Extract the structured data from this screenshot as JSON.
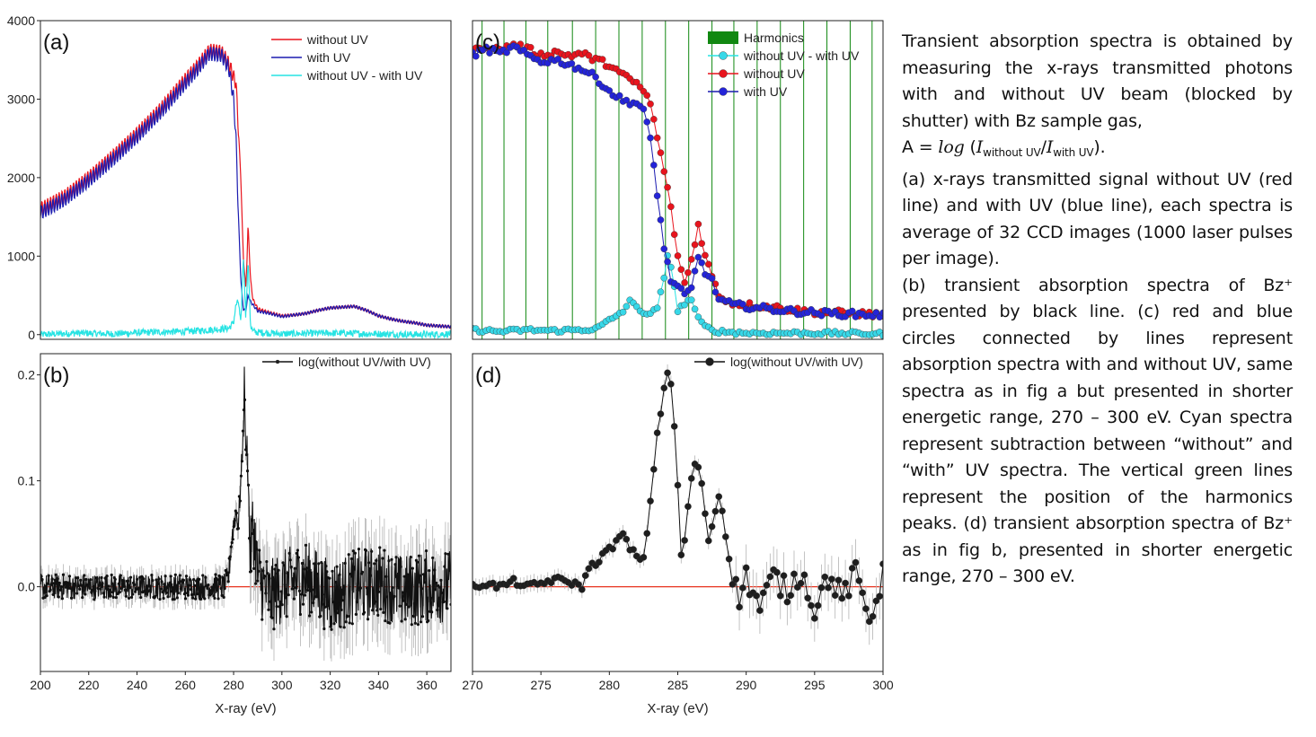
{
  "colors": {
    "red": "#e8141d",
    "blue": "#1b1bb0",
    "cyan": "#27e3e3",
    "black": "#111111",
    "green": "#118811",
    "zero_line": "#e8321e",
    "errbar": "#b4b4b4",
    "marker_red": "#e8141d",
    "marker_blue": "#2424d8",
    "marker_cyan": "#37d8e8",
    "marker_black": "#1e1e1e"
  },
  "caption": {
    "p1": "Transient absorption spectra is obtained by measuring the x-rays transmitted photons with and without UV beam (blocked by shutter) with Bz sample gas,",
    "formula_prefix": "A = ",
    "formula_log": "log",
    "formula_open": " (",
    "formula_I1": "I",
    "formula_sub1": "without UV",
    "formula_slash": "/",
    "formula_I2": "I",
    "formula_sub2": "with UV",
    "formula_close": ").",
    "p2": "(a) x-rays transmitted signal without UV (red line) and with UV (blue line), each spectra is average of 32 CCD images (1000 laser pulses per image).",
    "p3": "(b) transient absorption spectra of Bz⁺ presented by black line. (c) red and blue circles connected by lines represent absorption spectra with and without UV, same spectra as in fig a but presented in shorter energetic range, 270 – 300 eV. Cyan spectra represent subtraction between “without” and “with” UV spectra. The vertical green  lines represent the position of the harmonics peaks. (d) transient absorption spectra of Bz⁺ as in fig b, presented in shorter energetic range, 270 – 300 eV."
  },
  "chart_data": [
    {
      "id": "a",
      "type": "line",
      "panel_label": "(a)",
      "xlim": [
        200,
        370
      ],
      "ylim": [
        -60,
        4000
      ],
      "yticks": [
        0,
        1000,
        2000,
        3000,
        4000
      ],
      "ytick_labels": [
        "0",
        "1000",
        "2000",
        "3000",
        "4000"
      ],
      "legend": "top-right",
      "series": [
        {
          "name": "without UV",
          "color": "red",
          "x": [
            200,
            210,
            220,
            230,
            240,
            250,
            260,
            265,
            270,
            275,
            278,
            281,
            283,
            284,
            285,
            285.5,
            286,
            287,
            288,
            290,
            295,
            300,
            305,
            310,
            315,
            320,
            325,
            330,
            335,
            340,
            345,
            350,
            355,
            360,
            365,
            370
          ],
          "y": [
            1600,
            1760,
            2000,
            2270,
            2560,
            2880,
            3250,
            3420,
            3620,
            3600,
            3450,
            3200,
            2000,
            1000,
            600,
            900,
            1400,
            700,
            450,
            330,
            280,
            240,
            250,
            270,
            310,
            340,
            350,
            360,
            310,
            240,
            200,
            170,
            150,
            120,
            110,
            100
          ]
        },
        {
          "name": "with UV",
          "color": "blue",
          "x": [
            200,
            210,
            220,
            230,
            240,
            250,
            260,
            265,
            270,
            275,
            278,
            280,
            281,
            282,
            283,
            284,
            285,
            286,
            287,
            288,
            290,
            295,
            300,
            305,
            310,
            315,
            320,
            325,
            330,
            335,
            340,
            345,
            350,
            355,
            360,
            365,
            370
          ],
          "y": [
            1550,
            1720,
            1960,
            2230,
            2520,
            2840,
            3200,
            3380,
            3580,
            3560,
            3400,
            3000,
            2500,
            1500,
            700,
            330,
            300,
            500,
            420,
            380,
            300,
            270,
            230,
            250,
            270,
            310,
            340,
            350,
            360,
            310,
            240,
            200,
            170,
            150,
            120,
            110,
            100
          ]
        },
        {
          "name": "without UV - with UV",
          "color": "cyan",
          "x": [
            200,
            215,
            230,
            245,
            260,
            270,
            278,
            280,
            281,
            282,
            283,
            284,
            285,
            286,
            287,
            288,
            290,
            300,
            320,
            340,
            360,
            370
          ],
          "y": [
            0,
            20,
            10,
            30,
            40,
            60,
            80,
            160,
            380,
            420,
            120,
            1000,
            250,
            940,
            120,
            40,
            30,
            10,
            20,
            10,
            0,
            10
          ]
        }
      ]
    },
    {
      "id": "b",
      "type": "line",
      "panel_label": "(b)",
      "xlim": [
        200,
        370
      ],
      "ylim": [
        -0.08,
        0.22
      ],
      "xticks": [
        200,
        220,
        240,
        260,
        280,
        300,
        320,
        340,
        360
      ],
      "xtick_labels": [
        "200",
        "220",
        "240",
        "260",
        "280",
        "300",
        "320",
        "340",
        "360"
      ],
      "yticks": [
        0,
        0.1,
        0.2
      ],
      "ytick_labels": [
        "0.0",
        "0.1",
        "0.2"
      ],
      "xlabel": "X-ray (eV)",
      "zero_line": true,
      "legend": "top-right",
      "series": [
        {
          "name": "log(without UV/with UV)",
          "color": "black",
          "x": [
            200,
            220,
            240,
            260,
            270,
            276,
            278,
            279,
            280,
            281,
            282,
            283,
            284,
            284.5,
            285,
            285.5,
            286,
            286.5,
            287,
            288,
            289,
            290,
            295,
            300,
            310,
            320,
            330,
            340,
            350,
            360,
            370
          ],
          "y": [
            0,
            0,
            0,
            0,
            0,
            0,
            0.01,
            0.04,
            0.06,
            0.07,
            0.06,
            0.1,
            0.145,
            0.205,
            0.12,
            0.14,
            0.1,
            0.055,
            0.03,
            0.06,
            0.04,
            0.01,
            -0.01,
            0,
            0.01,
            -0.01,
            0,
            0.005,
            -0.005,
            0,
            0
          ]
        }
      ]
    },
    {
      "id": "c",
      "type": "scatter",
      "panel_label": "(c)",
      "xlim": [
        270,
        300
      ],
      "ylim": [
        -60,
        4000
      ],
      "legend": "top-right",
      "harmonics_label": "Harmonics",
      "harmonics": [
        270.7,
        272.3,
        273.9,
        275.5,
        277.3,
        279.0,
        280.7,
        282.4,
        284.1,
        285.8,
        287.5,
        289.1,
        290.8,
        292.5,
        294.2,
        295.9,
        297.6,
        299.2
      ],
      "series": [
        {
          "name": "without UV - with UV",
          "color": "cyan",
          "x": [
            270,
            272,
            274,
            276,
            277.5,
            279,
            280,
            281,
            281.5,
            282,
            282.5,
            283,
            283.5,
            284,
            284.3,
            284.6,
            285,
            285.5,
            286,
            286.5,
            287,
            287.5,
            288,
            289,
            290,
            295,
            300
          ],
          "y": [
            60,
            40,
            60,
            50,
            60,
            70,
            180,
            300,
            420,
            360,
            280,
            250,
            350,
            700,
            1050,
            800,
            300,
            400,
            450,
            200,
            100,
            60,
            40,
            30,
            20,
            20,
            10
          ]
        },
        {
          "name": "without UV",
          "color": "red",
          "x": [
            270,
            271,
            272,
            273,
            274,
            275,
            276,
            277,
            278,
            279,
            280,
            281,
            282,
            282.5,
            283,
            283.5,
            284,
            284.5,
            285,
            285.5,
            286,
            286.5,
            287,
            287.5,
            288,
            289,
            290,
            292,
            294,
            296,
            298,
            300
          ],
          "y": [
            3600,
            3680,
            3620,
            3700,
            3640,
            3560,
            3600,
            3560,
            3580,
            3500,
            3440,
            3300,
            3200,
            3100,
            2950,
            2500,
            2100,
            1600,
            1000,
            650,
            950,
            1400,
            1000,
            750,
            500,
            400,
            380,
            350,
            300,
            280,
            270,
            250
          ]
        },
        {
          "name": "with UV",
          "color": "blue",
          "x": [
            270,
            271,
            272,
            273,
            274,
            275,
            276,
            277,
            278,
            279,
            280,
            281,
            282,
            282.5,
            283,
            283.5,
            284,
            284.5,
            285,
            285.5,
            286,
            286.5,
            287,
            287.5,
            288,
            289,
            290,
            292,
            294,
            296,
            298,
            300
          ],
          "y": [
            3560,
            3640,
            3580,
            3660,
            3560,
            3480,
            3500,
            3450,
            3380,
            3280,
            3100,
            2980,
            2950,
            2850,
            2500,
            1800,
            1100,
            700,
            600,
            500,
            580,
            1000,
            800,
            680,
            450,
            380,
            360,
            320,
            290,
            270,
            260,
            250
          ]
        }
      ]
    },
    {
      "id": "d",
      "type": "scatter",
      "panel_label": "(d)",
      "xlim": [
        270,
        300
      ],
      "ylim": [
        -0.08,
        0.22
      ],
      "xticks": [
        270,
        275,
        280,
        285,
        290,
        295,
        300
      ],
      "xtick_labels": [
        "270",
        "275",
        "280",
        "285",
        "290",
        "295",
        "300"
      ],
      "xlabel": "X-ray (eV)",
      "zero_line": true,
      "legend": "top-right",
      "series": [
        {
          "name": "log(without UV/with UV)",
          "color": "black",
          "x": [
            270,
            271,
            272,
            273,
            274,
            275,
            276,
            277,
            278,
            278.5,
            279,
            279.5,
            280,
            280.5,
            281,
            281.5,
            282,
            282.5,
            283,
            283.5,
            284,
            284.3,
            284.6,
            285,
            285.3,
            285.6,
            286,
            286.3,
            286.6,
            287,
            287.3,
            287.6,
            288,
            288.3,
            288.6,
            289,
            289.5,
            290,
            291,
            292,
            293,
            294,
            295,
            296,
            297,
            298,
            299,
            300
          ],
          "y": [
            0,
            0.003,
            0,
            0.005,
            0,
            0.003,
            0.007,
            0.005,
            0,
            0.018,
            0.022,
            0.03,
            0.035,
            0.042,
            0.05,
            0.035,
            0.03,
            0.025,
            0.08,
            0.145,
            0.185,
            0.205,
            0.185,
            0.095,
            0.015,
            0.06,
            0.1,
            0.12,
            0.11,
            0.07,
            0.04,
            0.065,
            0.085,
            0.07,
            0.04,
            0.005,
            -0.01,
            0.01,
            -0.02,
            0.01,
            -0.005,
            0.015,
            -0.02,
            0.01,
            -0.01,
            0.012,
            -0.03,
            0.01
          ]
        }
      ]
    }
  ]
}
